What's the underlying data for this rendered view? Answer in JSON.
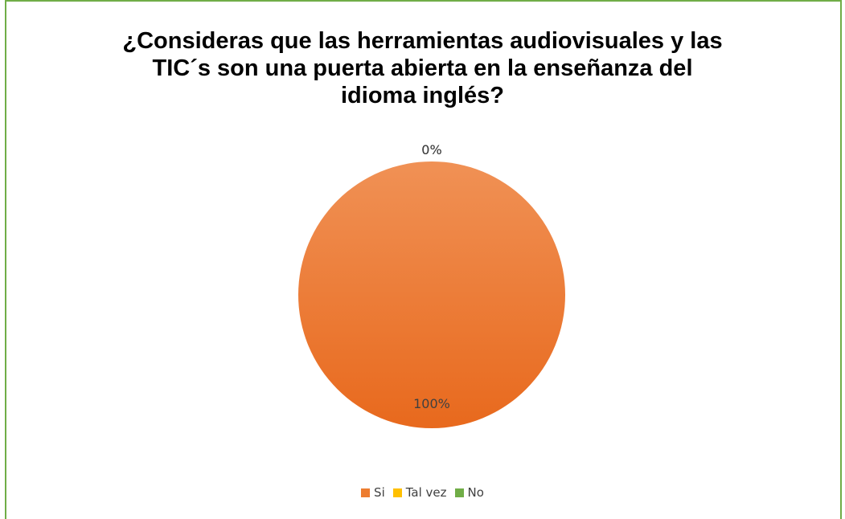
{
  "chart_data": {
    "type": "pie",
    "title_lines": [
      "¿Consideras que las herramientas audiovisuales y las",
      "TIC´s son una puerta abierta en la enseñanza del",
      "idioma inglés?"
    ],
    "categories": [
      "Si",
      "Tal vez",
      "No"
    ],
    "values": [
      100,
      0,
      0
    ],
    "data_labels": [
      "100%",
      "0%",
      "0%"
    ],
    "colors": [
      "#ed7d31",
      "#ffc000",
      "#70ad47"
    ],
    "legend_position": "bottom"
  }
}
